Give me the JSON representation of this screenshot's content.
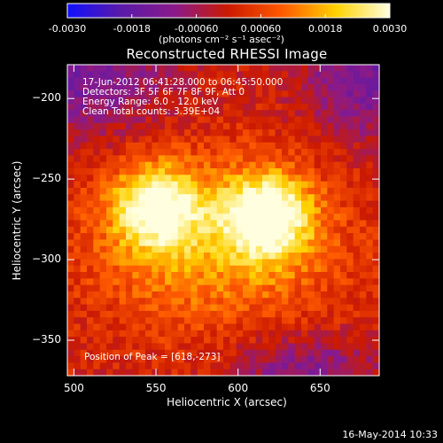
{
  "colorbar": {
    "tick_labels": [
      "-0.0030",
      "-0.0018",
      "-0.00060",
      "0.00060",
      "0.0018",
      "0.0030"
    ],
    "tick_values": [
      -0.003,
      -0.0018,
      -0.0006,
      0.0006,
      0.0018,
      0.003
    ],
    "range": [
      -0.003,
      0.003
    ],
    "units_label": "(photons cm⁻² s⁻¹ asec⁻²)",
    "colors": [
      "#1010ff",
      "#5a1aa8",
      "#8a1a8a",
      "#cc1a00",
      "#ff5a00",
      "#ffd200",
      "#ffffe0"
    ]
  },
  "chart_data": {
    "type": "heatmap",
    "title": "Reconstructed RHESSI Image",
    "xlabel": "Heliocentric X (arcsec)",
    "ylabel": "Heliocentric Y (arcsec)",
    "xlim": [
      496,
      686
    ],
    "ylim": [
      -372,
      -179
    ],
    "x_ticks": [
      500,
      550,
      600,
      650
    ],
    "y_ticks": [
      -200,
      -250,
      -300,
      -350
    ],
    "peak_position": [
      618,
      -273
    ],
    "sources": [
      {
        "x": 550,
        "y": -267,
        "peak": 0.0027
      },
      {
        "x": 618,
        "y": -273,
        "peak": 0.003
      }
    ],
    "info_lines": [
      "17-Jun-2012 06:41:28.000 to 06:45:50.000",
      "Detectors: 3F 5F 6F 7F 8F 9F, Att 0",
      "Energy Range: 6.0 - 12.0 keV",
      "Clean    Total counts: 3.39E+04"
    ],
    "peak_text": "Position of Peak = [618,-273]",
    "timestamp": "16-May-2014 10:33"
  }
}
